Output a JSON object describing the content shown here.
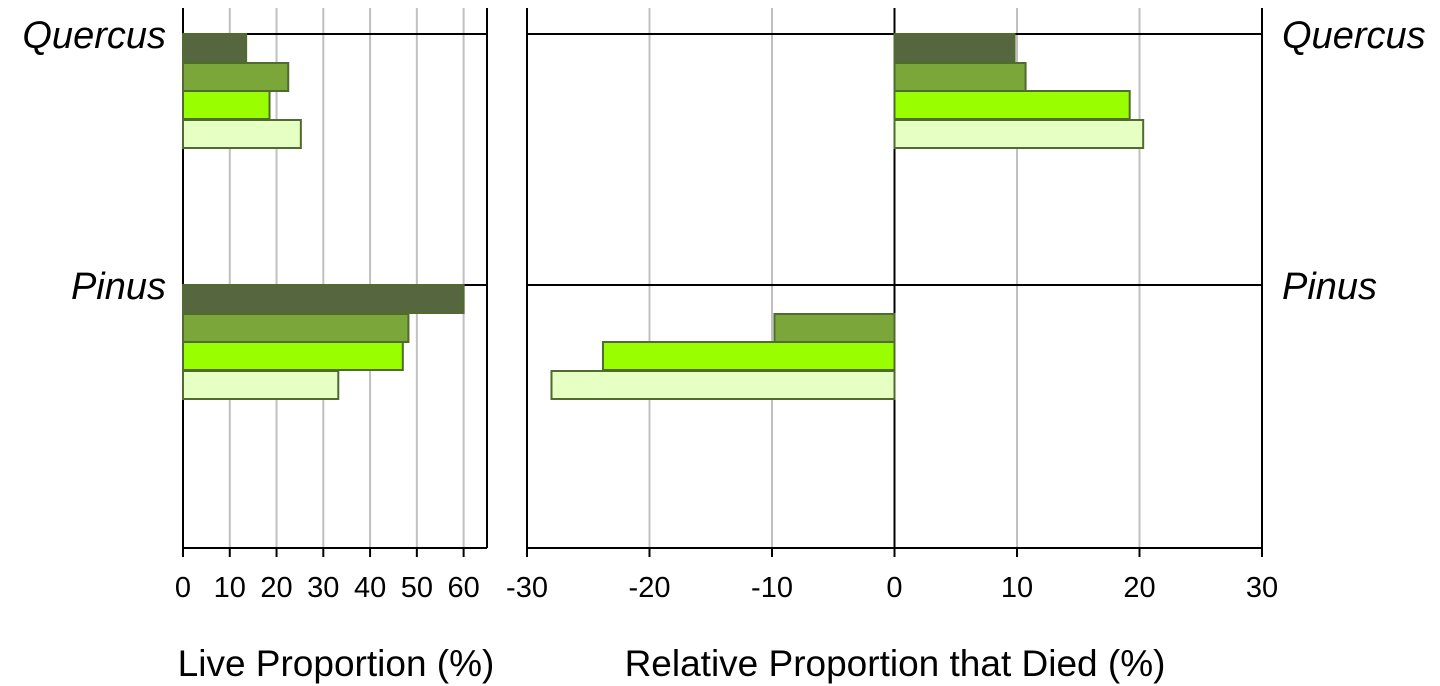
{
  "chart_data": [
    {
      "type": "bar",
      "orientation": "horizontal",
      "title": "",
      "xlabel": "Live Proportion (%)",
      "ylabel": "",
      "xlim": [
        0,
        65
      ],
      "xticks": [
        0,
        10,
        20,
        30,
        40,
        50,
        60
      ],
      "grid": true,
      "categories": [
        "Quercus",
        "Pinus"
      ],
      "series": [
        {
          "values": [
            13.5,
            60.0
          ],
          "color": "#56663e"
        },
        {
          "values": [
            22.5,
            48.2
          ],
          "color": "#7aa63a"
        },
        {
          "values": [
            18.5,
            47.0
          ],
          "color": "#99ff00"
        },
        {
          "values": [
            25.2,
            33.2
          ],
          "color": "#e6ffc2"
        }
      ]
    },
    {
      "type": "bar",
      "orientation": "horizontal",
      "title": "",
      "xlabel": "Relative Proportion that Died (%)",
      "ylabel": "",
      "xlim": [
        -30,
        30
      ],
      "xticks": [
        -30,
        -20,
        -10,
        0,
        10,
        20,
        30
      ],
      "grid": true,
      "categories": [
        "Quercus",
        "Pinus"
      ],
      "series": [
        {
          "values": [
            9.8,
            0.0
          ],
          "color": "#56663e"
        },
        {
          "values": [
            10.7,
            -9.8
          ],
          "color": "#7aa63a"
        },
        {
          "values": [
            19.2,
            -23.8
          ],
          "color": "#99ff00"
        },
        {
          "values": [
            20.3,
            -28.0
          ],
          "color": "#e6ffc2"
        }
      ]
    }
  ]
}
